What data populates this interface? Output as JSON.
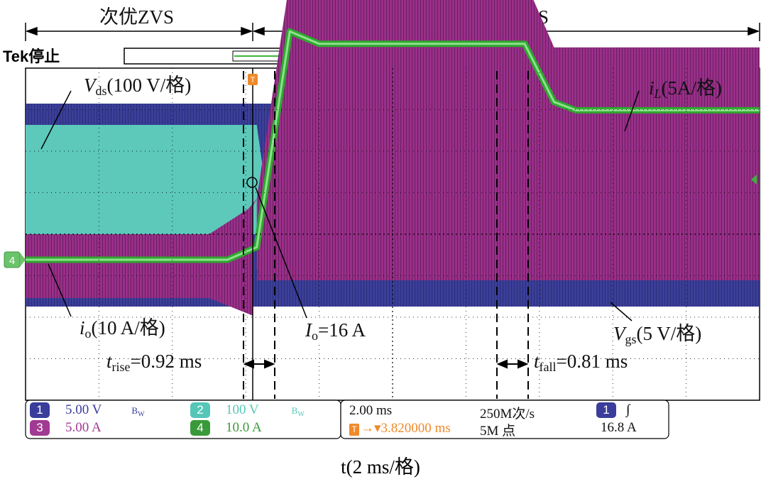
{
  "header": {
    "left_label": "次优ZVS",
    "right_label": "最优ZVS",
    "tek_status": "Tek停止",
    "trigger_marker": "T",
    "ch4_marker": "4"
  },
  "annotations": {
    "vds": {
      "sym": "V",
      "sub": "ds",
      "text": "(100 V/格)"
    },
    "il": {
      "sym": "i",
      "sub": "L",
      "text": "(5A/格)"
    },
    "io": {
      "sym": "i",
      "sub": "o",
      "text": "(10 A/格)"
    },
    "Io": {
      "sym": "I",
      "sub": "o",
      "text": "=16 A"
    },
    "vgs": {
      "sym": "V",
      "sub": "gs",
      "text": "(5 V/格)"
    },
    "trise": {
      "sym": "t",
      "sub": "rise",
      "text": "=0.92 ms"
    },
    "tfall": {
      "sym": "t",
      "sub": "fall",
      "text": "=0.81 ms"
    }
  },
  "legend": {
    "ch1": {
      "num": "1",
      "scale": "5.00 V",
      "bw": "B",
      "bw_sub": "W",
      "color": "#3a3d9a"
    },
    "ch2": {
      "num": "2",
      "scale": "100 V",
      "bw": "B",
      "bw_sub": "W",
      "color": "#55c7b8"
    },
    "ch3": {
      "num": "3",
      "scale": "5.00 A",
      "color": "#a03a92"
    },
    "ch4": {
      "num": "4",
      "scale": "10.0 A",
      "color": "#3a9a3a"
    },
    "timebase": "2.00 ms",
    "sample_rate": "250M次/s",
    "trigger_pos": "→▾3.820000 ms",
    "record_length": "5M 点",
    "trig_channel": "1",
    "trig_slope": "∫",
    "trig_level": "16.8 A"
  },
  "chart_data": {
    "type": "line",
    "title": "",
    "xlabel": "t(2 ms/格)",
    "x_range_ms": [
      0,
      20
    ],
    "grid": true,
    "divisions": {
      "x": 10,
      "y": 8
    },
    "series": [
      {
        "name": "V_ds",
        "channel": "2",
        "color": "#55c7b8",
        "scale": "100 V/格",
        "x_ms": [
          0,
          6.3,
          6.5,
          20
        ],
        "y_div": [
          5.3,
          5.3,
          0.0,
          0.0
        ]
      },
      {
        "name": "V_gs",
        "channel": "1",
        "color": "#3a3d9a",
        "scale": "5 V/格",
        "x_ms": [
          0,
          20
        ],
        "y_div": [
          0.0,
          0.0
        ]
      },
      {
        "name": "i_L",
        "channel": "3",
        "color": "#a03a92",
        "scale": "5A/格",
        "x_ms": [
          0,
          6.3,
          7.2,
          13.6,
          14.4,
          20
        ],
        "y_div": [
          0.2,
          0.2,
          6.4,
          6.4,
          4.6,
          4.6
        ]
      },
      {
        "name": "i_o",
        "channel": "4",
        "color": "#36c036",
        "scale": "10 A/格",
        "x_ms": [
          0,
          5.5,
          6.3,
          7.2,
          8.0,
          13.6,
          14.4,
          15.0,
          20
        ],
        "y_div": [
          0.0,
          0.0,
          0.3,
          5.5,
          5.2,
          5.2,
          3.8,
          3.6,
          3.6
        ]
      },
      {
        "name": "t_rise",
        "value_ms": 0.92
      },
      {
        "name": "t_fall",
        "value_ms": 0.81
      },
      {
        "name": "I_o",
        "value_A": 16
      }
    ]
  }
}
